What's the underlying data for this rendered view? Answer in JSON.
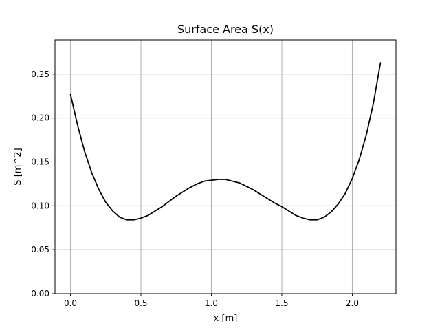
{
  "chart_data": {
    "type": "line",
    "title": "Surface Area S(x)",
    "xlabel": "x [m]",
    "ylabel": "S [m^2]",
    "xlim": [
      -0.11,
      2.31
    ],
    "ylim": [
      0.0,
      0.289
    ],
    "xticks": [
      0.0,
      0.5,
      1.0,
      1.5,
      2.0
    ],
    "xtick_labels": [
      "0.0",
      "0.5",
      "1.0",
      "1.5",
      "2.0"
    ],
    "yticks": [
      0.0,
      0.05,
      0.1,
      0.15,
      0.2,
      0.25
    ],
    "ytick_labels": [
      "0.00",
      "0.05",
      "0.10",
      "0.15",
      "0.20",
      "0.25"
    ],
    "grid": true,
    "series": [
      {
        "color": "#000000",
        "points": [
          [
            0.0,
            0.227
          ],
          [
            0.05,
            0.192
          ],
          [
            0.1,
            0.162
          ],
          [
            0.15,
            0.138
          ],
          [
            0.2,
            0.119
          ],
          [
            0.25,
            0.104
          ],
          [
            0.3,
            0.094
          ],
          [
            0.35,
            0.087
          ],
          [
            0.4,
            0.084
          ],
          [
            0.45,
            0.084
          ],
          [
            0.5,
            0.086
          ],
          [
            0.55,
            0.089
          ],
          [
            0.6,
            0.094
          ],
          [
            0.65,
            0.099
          ],
          [
            0.7,
            0.105
          ],
          [
            0.75,
            0.111
          ],
          [
            0.8,
            0.116
          ],
          [
            0.85,
            0.121
          ],
          [
            0.9,
            0.125
          ],
          [
            0.95,
            0.128
          ],
          [
            1.0,
            0.129
          ],
          [
            1.05,
            0.13
          ],
          [
            1.1,
            0.13
          ],
          [
            1.15,
            0.128
          ],
          [
            1.2,
            0.126
          ],
          [
            1.25,
            0.122
          ],
          [
            1.3,
            0.118
          ],
          [
            1.35,
            0.113
          ],
          [
            1.4,
            0.108
          ],
          [
            1.45,
            0.103
          ],
          [
            1.5,
            0.099
          ],
          [
            1.55,
            0.094
          ],
          [
            1.6,
            0.089
          ],
          [
            1.65,
            0.086
          ],
          [
            1.7,
            0.084
          ],
          [
            1.75,
            0.084
          ],
          [
            1.8,
            0.087
          ],
          [
            1.85,
            0.093
          ],
          [
            1.9,
            0.102
          ],
          [
            1.95,
            0.114
          ],
          [
            2.0,
            0.131
          ],
          [
            2.05,
            0.153
          ],
          [
            2.1,
            0.181
          ],
          [
            2.15,
            0.217
          ],
          [
            2.2,
            0.263
          ]
        ]
      }
    ]
  }
}
